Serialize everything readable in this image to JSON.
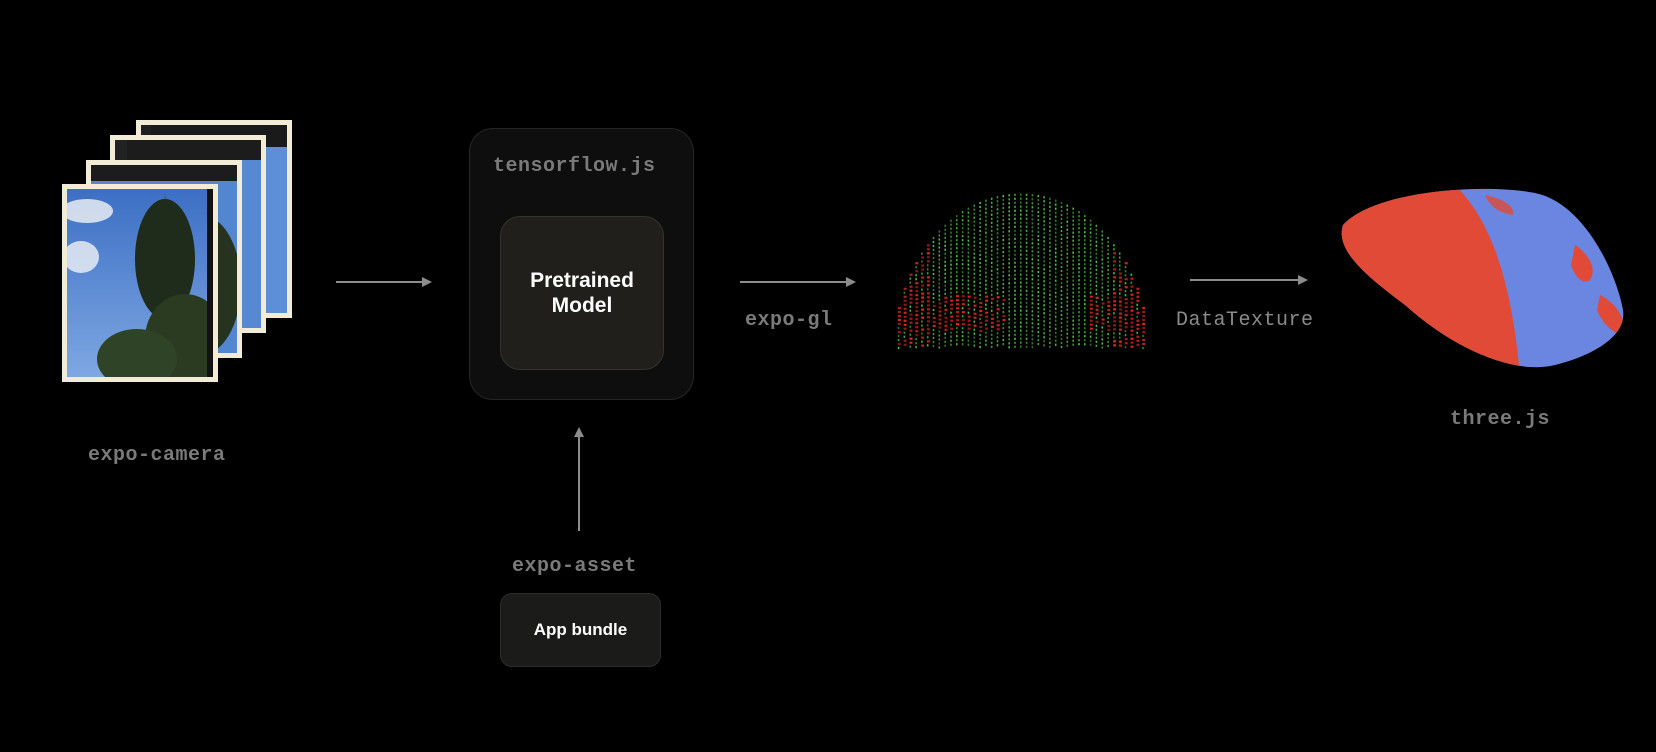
{
  "camera": {
    "label": "expo-camera"
  },
  "tensorflow": {
    "label": "tensorflow.js",
    "model_label": "Pretrained\nModel"
  },
  "asset": {
    "label": "expo-asset",
    "bundle_label": "App bundle"
  },
  "gl": {
    "label": "expo-gl"
  },
  "texture": {
    "label": "DataTexture"
  },
  "three": {
    "label": "three.js"
  },
  "colors": {
    "background": "#000000",
    "arrow": "#8c8c8c",
    "label_gray": "#7a7a7a",
    "photo_border": "#f2ecd6",
    "sky_blue": "#4a7fd0",
    "mesh_red": "#e04a36",
    "mesh_blue": "#6b86e0",
    "point_green": "#4fc24a",
    "point_red": "#e0281e"
  }
}
